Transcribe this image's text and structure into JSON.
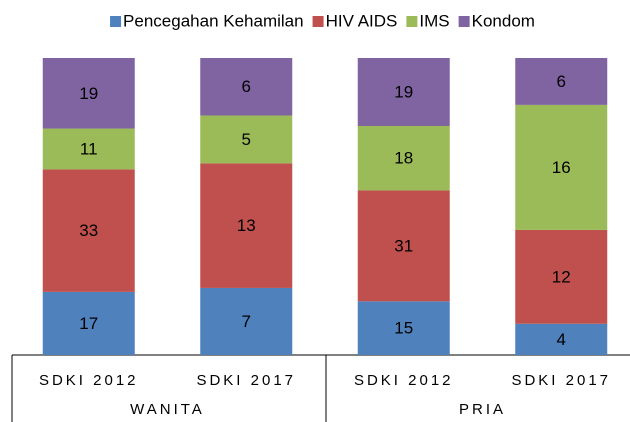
{
  "chart_data": {
    "type": "stacked_bar_100",
    "categories": [
      "SDKI 2012",
      "SDKI 2017",
      "SDKI 2012",
      "SDKI 2017"
    ],
    "groups": [
      "WANITA",
      "PRIA"
    ],
    "series": [
      {
        "name": "Pencegahan Kehamilan",
        "color": "#4f81bd",
        "values": [
          17,
          7,
          15,
          4
        ]
      },
      {
        "name": "HIV AIDS",
        "color": "#c0504d",
        "values": [
          33,
          13,
          31,
          12
        ]
      },
      {
        "name": "IMS",
        "color": "#9bbb59",
        "values": [
          11,
          5,
          18,
          16
        ]
      },
      {
        "name": "Kondom",
        "color": "#8064a2",
        "values": [
          19,
          6,
          19,
          6
        ]
      }
    ],
    "legend": "top"
  }
}
